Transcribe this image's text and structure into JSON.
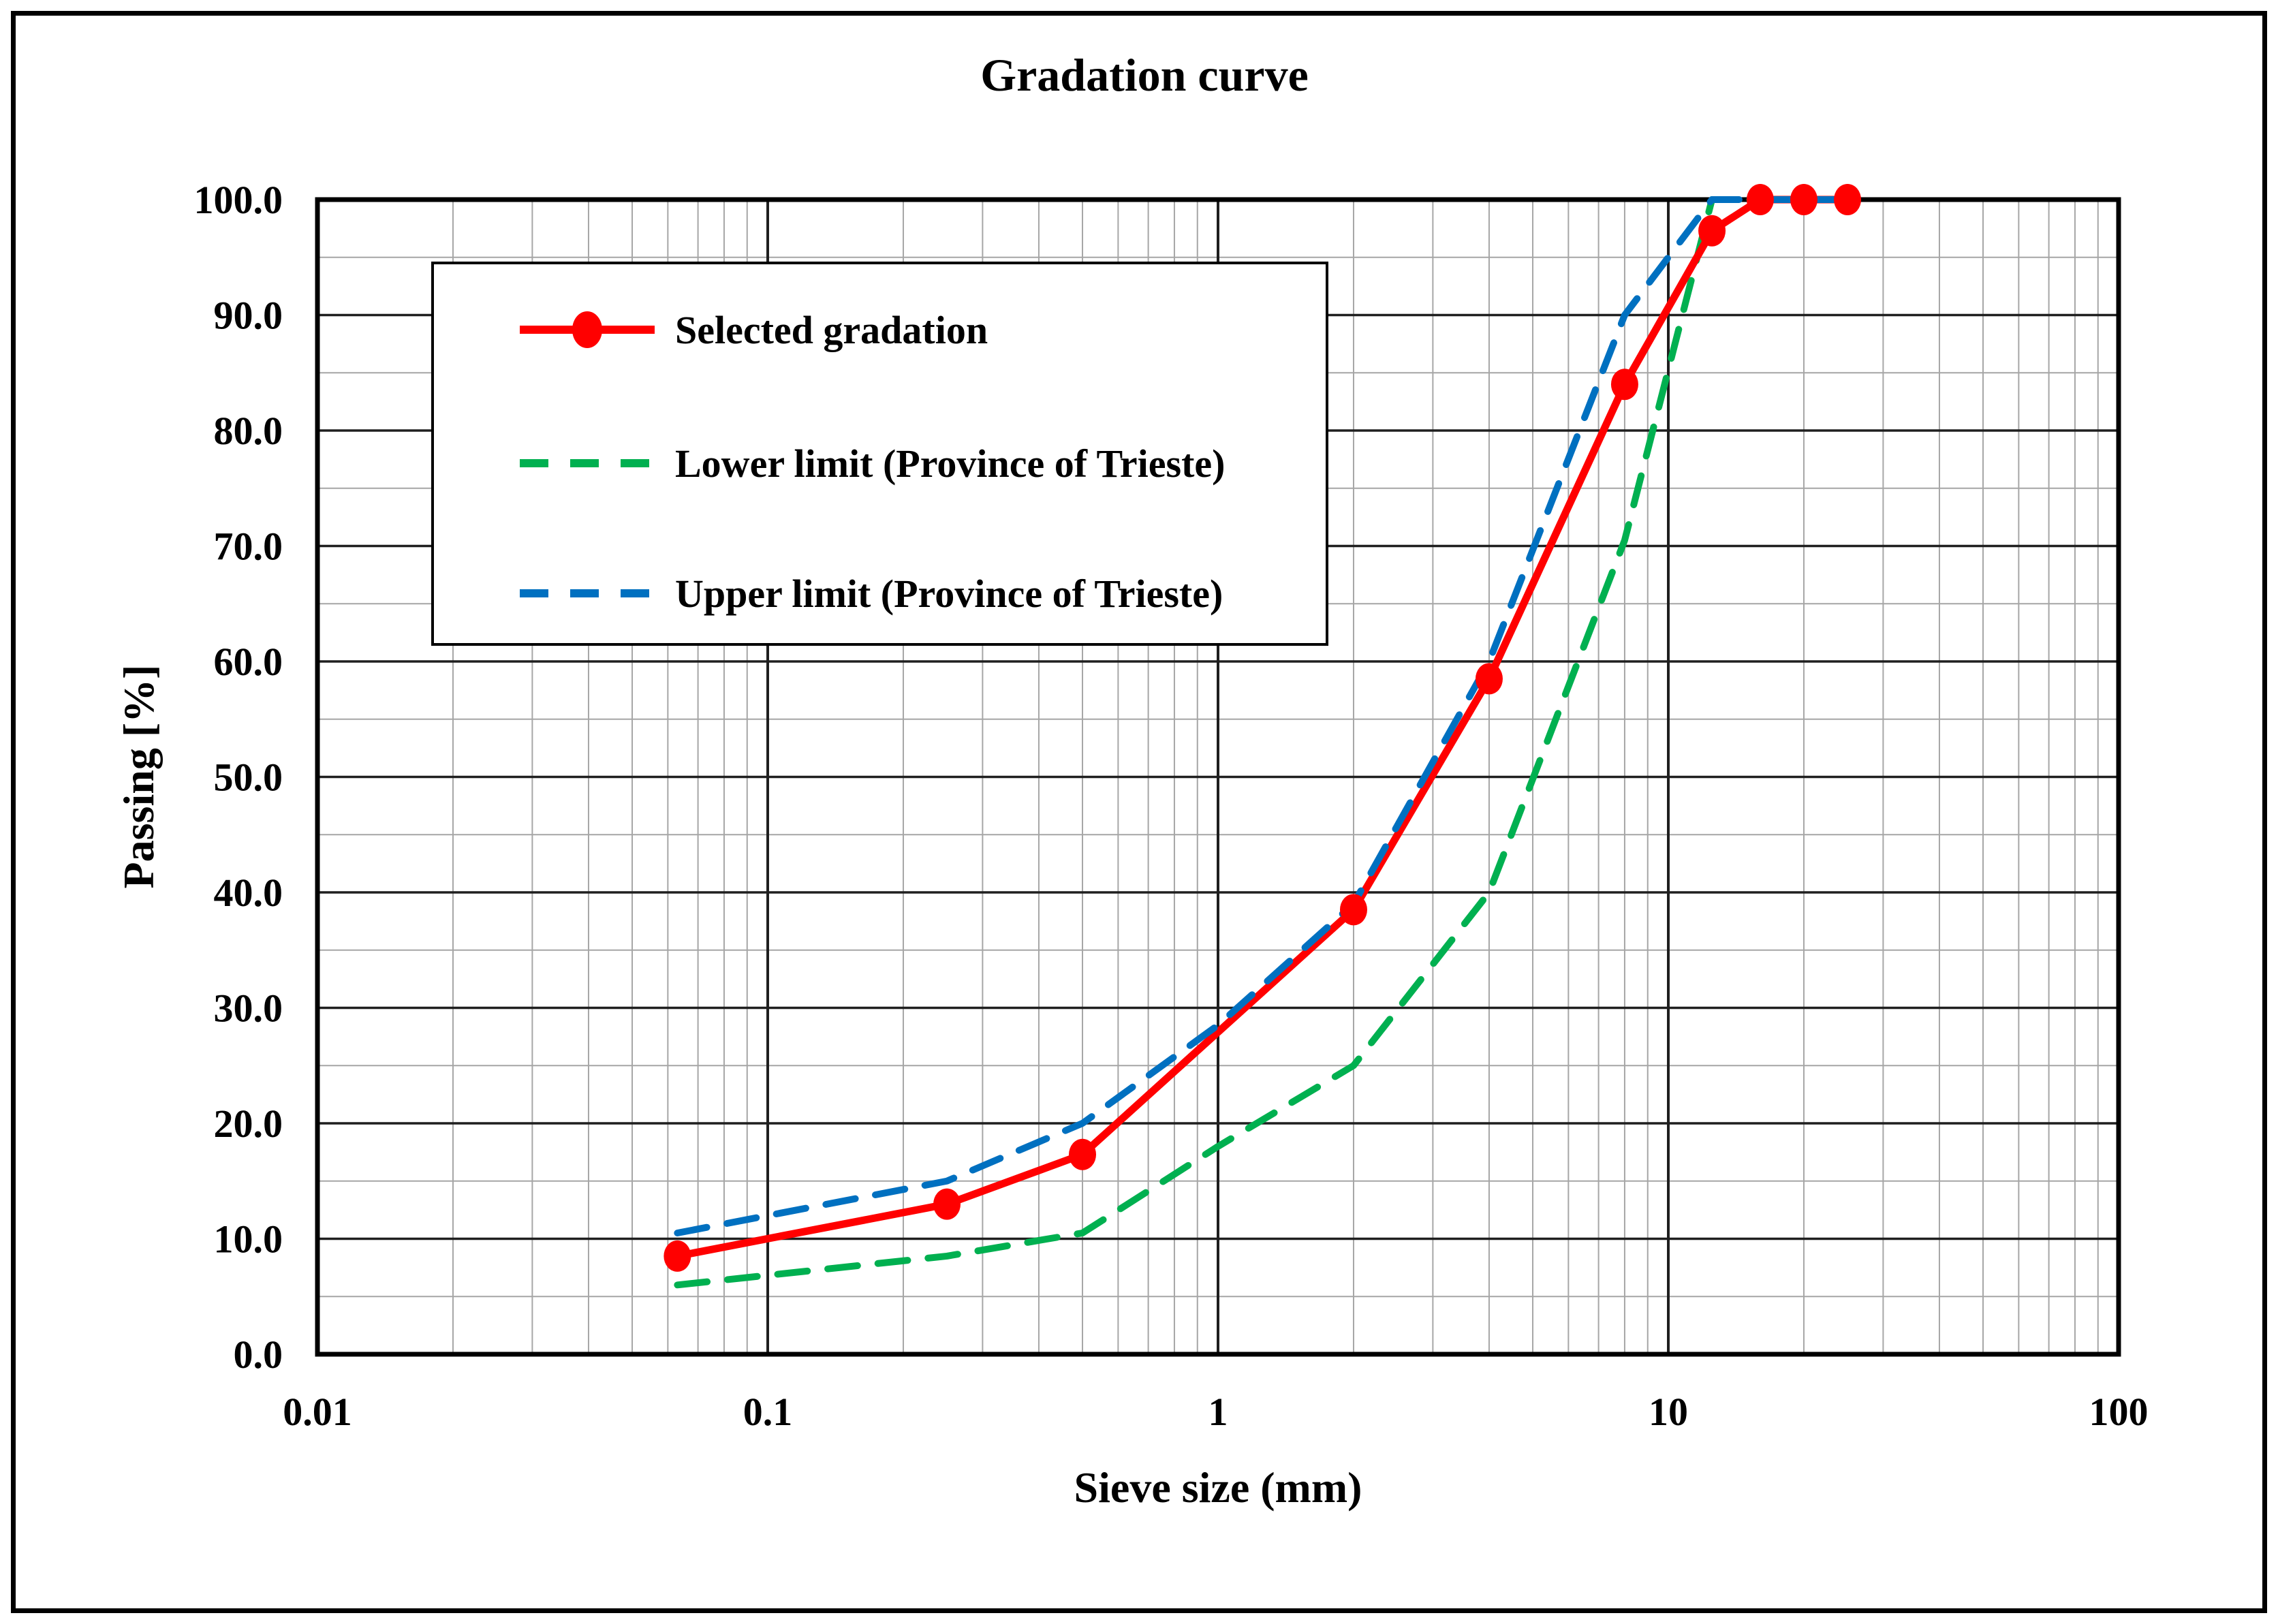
{
  "figure": {
    "title": "Gradation curve"
  },
  "chart_data": {
    "type": "line",
    "title": "Gradation curve",
    "xlabel": "Sieve size (mm)",
    "ylabel": "Passing [%]",
    "x_scale": "log",
    "xlim": [
      0.01,
      100
    ],
    "ylim": [
      0,
      100
    ],
    "x_tick_values": [
      0.01,
      0.1,
      1,
      10,
      100
    ],
    "x_tick_labels": [
      "0.01",
      "0.1",
      "1",
      "10",
      "100"
    ],
    "y_tick_values": [
      0,
      10,
      20,
      30,
      40,
      50,
      60,
      70,
      80,
      90,
      100
    ],
    "y_tick_labels": [
      "0.0",
      "10.0",
      "20.0",
      "30.0",
      "40.0",
      "50.0",
      "60.0",
      "70.0",
      "80.0",
      "90.0",
      "100.0"
    ],
    "y_minor_step": 5,
    "grid": {
      "minor_color": "#A6A6A6",
      "major_color": "#1F1F1F",
      "border_color": "#000000"
    },
    "legend_position": "upper-left",
    "series": [
      {
        "name": "Selected gradation",
        "color": "#FF0000",
        "style": "solid",
        "marker": "circle",
        "x": [
          0.063,
          0.25,
          0.5,
          2,
          4,
          8,
          12.5,
          16,
          20,
          25
        ],
        "y": [
          8.5,
          13.0,
          17.3,
          38.5,
          58.5,
          84.0,
          97.3,
          100.0,
          100.0,
          100.0
        ]
      },
      {
        "name": "Lower limit (Province of Trieste)",
        "color": "#00B050",
        "style": "dashed",
        "marker": "none",
        "x": [
          0.063,
          0.25,
          0.5,
          1,
          2,
          4,
          8,
          12.5,
          25
        ],
        "y": [
          6.0,
          8.5,
          10.5,
          18.0,
          25.0,
          40.0,
          70.5,
          100.0,
          100.0
        ]
      },
      {
        "name": "Upper limit (Province of Trieste)",
        "color": "#0070C0",
        "style": "dashed",
        "marker": "none",
        "x": [
          0.063,
          0.25,
          0.5,
          1,
          2,
          4,
          8,
          12.5,
          25
        ],
        "y": [
          10.5,
          15.0,
          20.0,
          28.5,
          39.0,
          60.0,
          90.0,
          100.0,
          100.0
        ]
      }
    ]
  }
}
